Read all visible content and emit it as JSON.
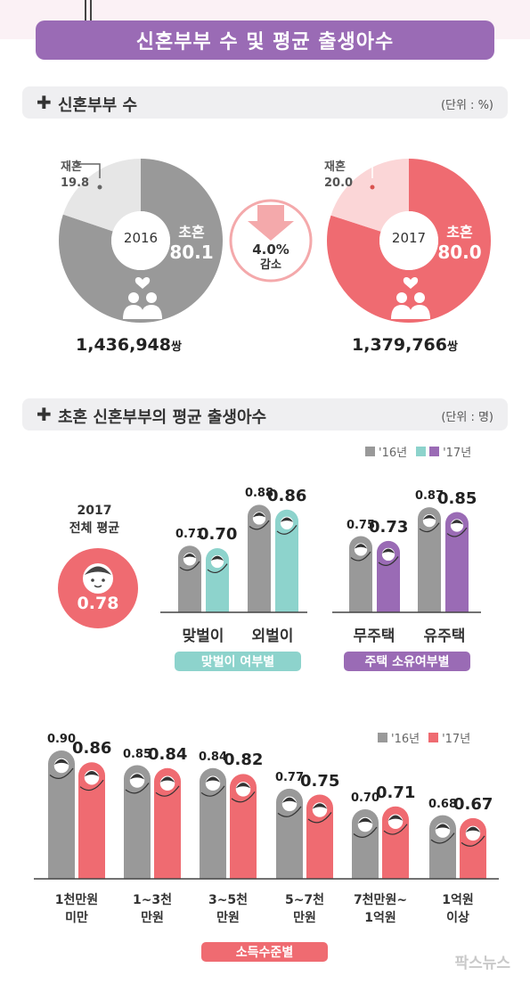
{
  "title": "신혼부부 수 및 평균 출생아수",
  "section1": {
    "heading": "신혼부부 수",
    "unit": "(단위 : %)",
    "year_2016": {
      "year": "2016",
      "first_label": "초혼",
      "first_value": "80.1",
      "re_label": "재혼",
      "re_value": "19.8",
      "count": "1,436,948",
      "count_unit": "쌍"
    },
    "year_2017": {
      "year": "2017",
      "first_label": "초혼",
      "first_value": "80.0",
      "re_label": "재혼",
      "re_value": "20.0",
      "count": "1,379,766",
      "count_unit": "쌍"
    },
    "change": {
      "value": "4.0%",
      "label": "감소"
    }
  },
  "section2": {
    "heading": "초혼 신혼부부의 평균 출생아수",
    "unit": "(단위 : 명)",
    "overall": {
      "year": "2017",
      "label": "전체 평균",
      "value": "0.78"
    },
    "legend_16": "'16년",
    "legend_17": "'17년",
    "group_pill_1": "맞벌이 여부별",
    "group_pill_2": "주택 소유여부별",
    "income_legend_16": "'16년",
    "income_legend_17": "'17년",
    "income_pill": "소득수준별"
  },
  "colors": {
    "gray": "#999999",
    "teal": "#8dd3cc",
    "purple": "#9a6bb5",
    "red": "#ef6b71",
    "light_gray": "#e6e6e6",
    "light_red": "#fbd6d7"
  },
  "chart_data": [
    {
      "type": "pie",
      "title": "2016",
      "categories": [
        "초혼",
        "재혼"
      ],
      "values": [
        80.1,
        19.8
      ]
    },
    {
      "type": "pie",
      "title": "2017",
      "categories": [
        "초혼",
        "재혼"
      ],
      "values": [
        80.0,
        20.0
      ]
    },
    {
      "type": "bar",
      "categories": [
        "맞벌이",
        "외벌이"
      ],
      "series": [
        {
          "name": "'16년",
          "values": [
            0.71,
            0.88
          ]
        },
        {
          "name": "'17년",
          "values": [
            0.7,
            0.86
          ]
        }
      ]
    },
    {
      "type": "bar",
      "categories": [
        "무주택",
        "유주택"
      ],
      "series": [
        {
          "name": "'16년",
          "values": [
            0.75,
            0.87
          ]
        },
        {
          "name": "'17년",
          "values": [
            0.73,
            0.85
          ]
        }
      ]
    },
    {
      "type": "bar",
      "categories": [
        "1천만원\n미만",
        "1~3천\n만원",
        "3~5천\n만원",
        "5~7천\n만원",
        "7천만원~\n1억원",
        "1억원\n이상"
      ],
      "series": [
        {
          "name": "'16년",
          "values": [
            0.9,
            0.85,
            0.84,
            0.77,
            0.7,
            0.68
          ]
        },
        {
          "name": "'17년",
          "values": [
            0.86,
            0.84,
            0.82,
            0.75,
            0.71,
            0.67
          ]
        }
      ]
    }
  ]
}
